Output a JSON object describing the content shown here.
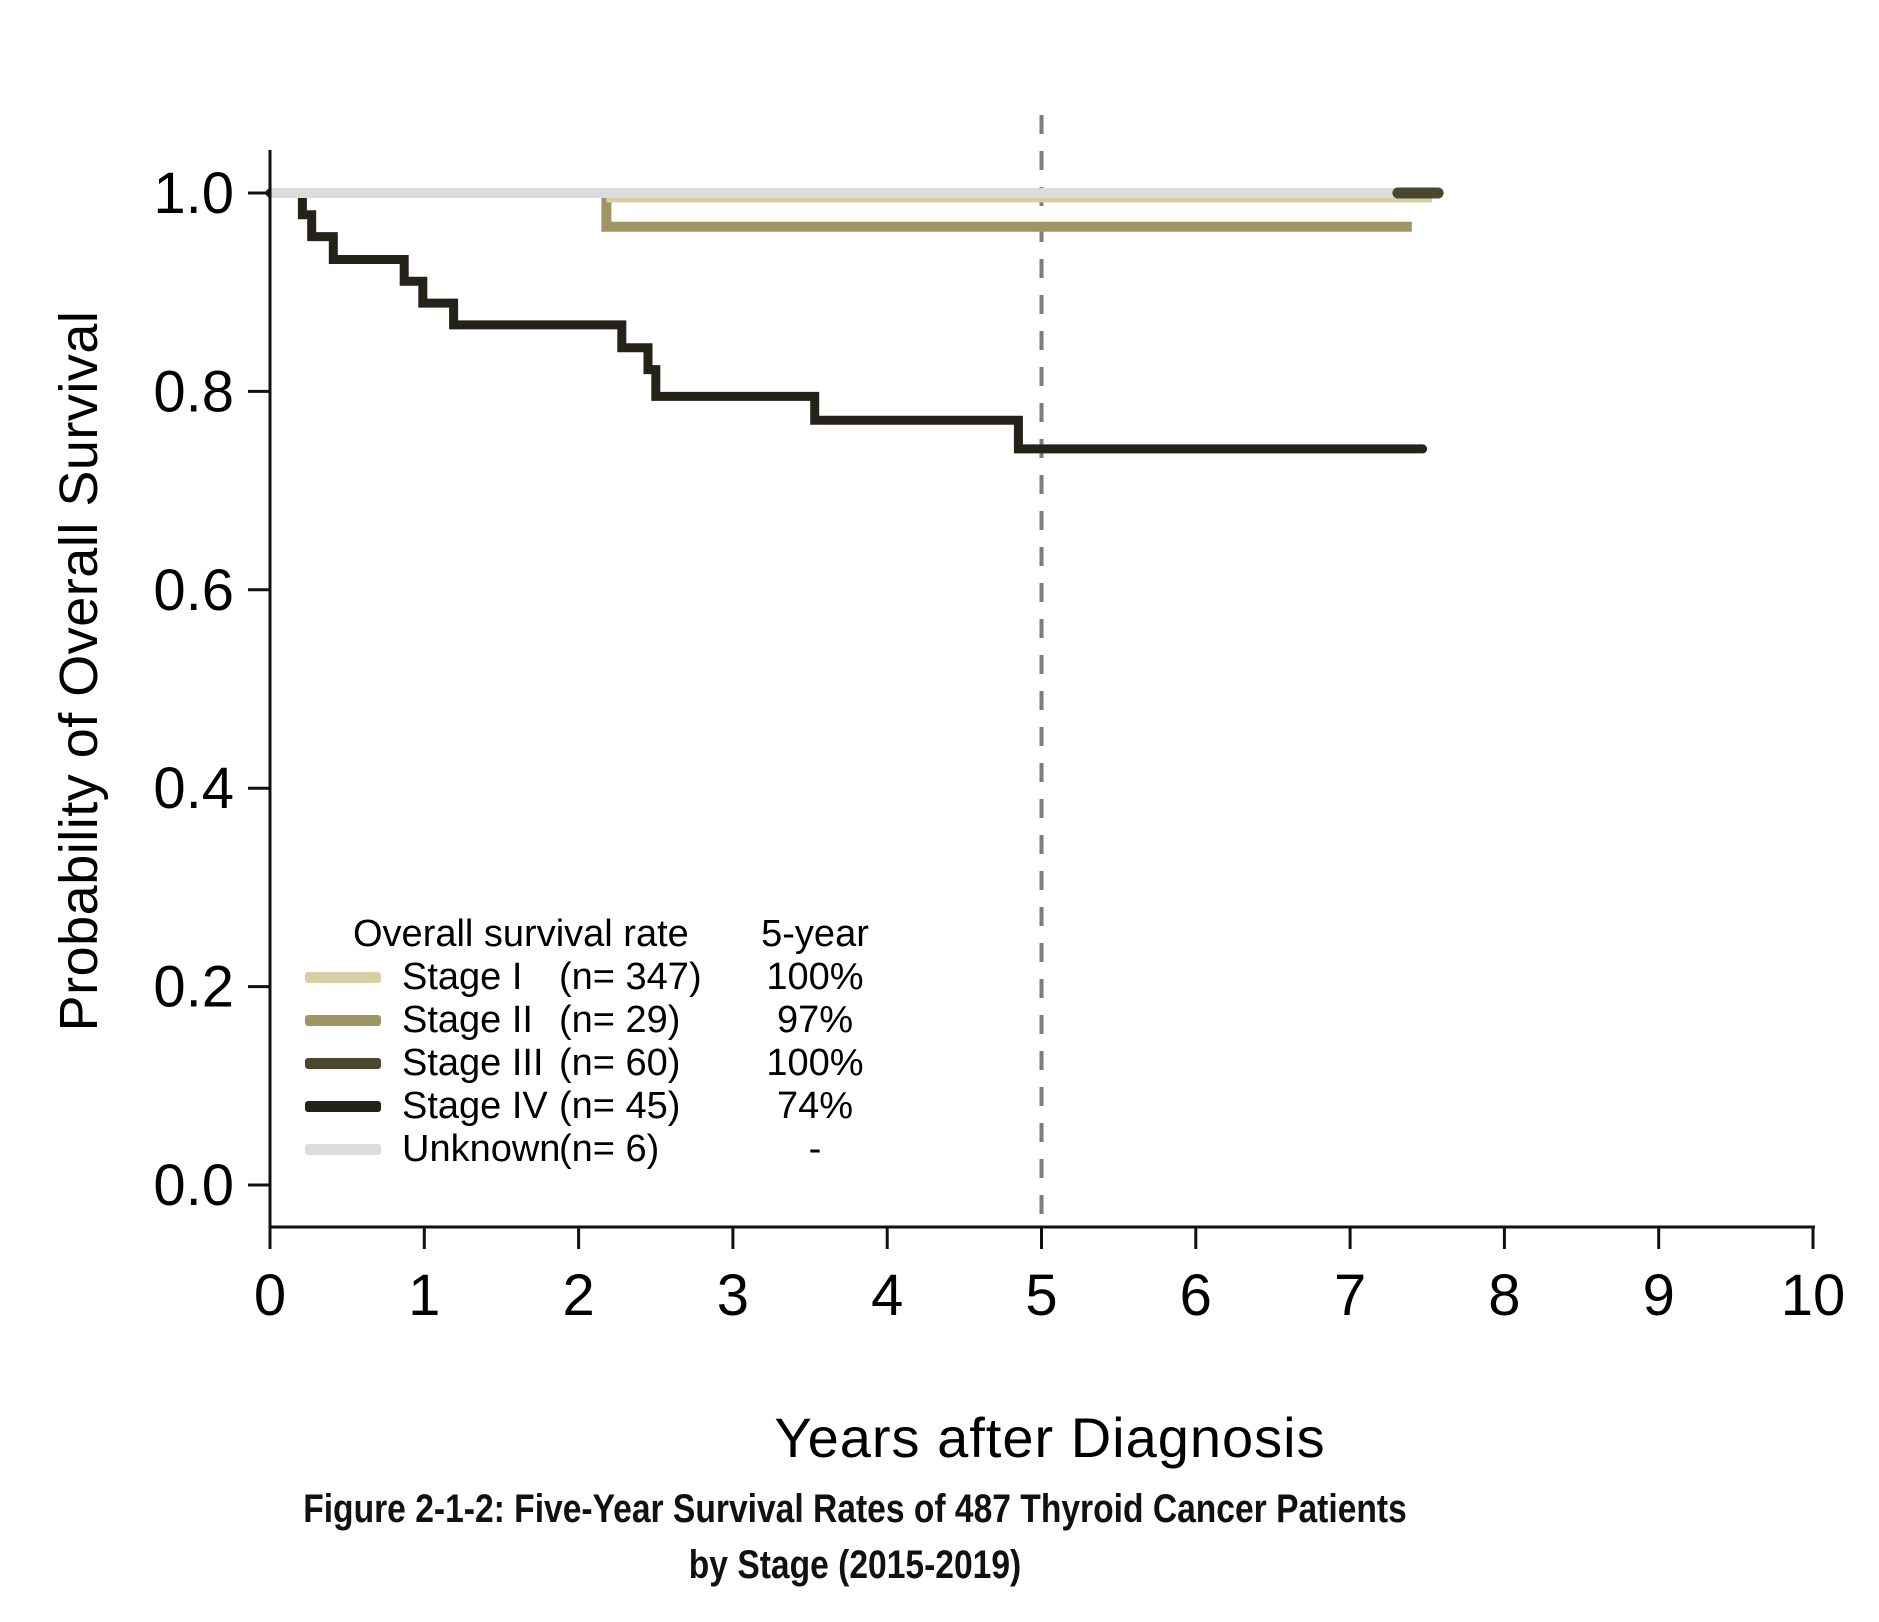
{
  "figure": {
    "y_axis_title": "Probability of Overall Survival",
    "x_axis_title": "Years after Diagnosis",
    "caption_line1": "Figure 2-1-2: Five-Year Survival Rates of 487 Thyroid Cancer Patients",
    "caption_line2": "by Stage (2015-2019)"
  },
  "legend": {
    "header_label": "Overall survival rate",
    "header_value": "5-year",
    "rows": [
      {
        "name": "Stage I",
        "n": "(n= 347)",
        "value": "100%",
        "color": "#d6d0a4"
      },
      {
        "name": "Stage II",
        "n": "(n= 29)",
        "value": "97%",
        "color": "#9f9562"
      },
      {
        "name": "Stage III",
        "n": "(n= 60)",
        "value": "100%",
        "color": "#4b472c"
      },
      {
        "name": "Stage IV",
        "n": "(n= 45)",
        "value": "74%",
        "color": "#25221a"
      },
      {
        "name": "Unknown",
        "n": "(n= 6)",
        "value": "-",
        "color": "#dcdcdc"
      }
    ]
  },
  "chart_data": {
    "type": "line",
    "subtype": "kaplan-meier-step-curves",
    "title": "Five-Year Survival Rates of 487 Thyroid Cancer Patients by Stage (2015-2019)",
    "xlabel": "Years after Diagnosis",
    "ylabel": "Probability of Overall Survival",
    "xlim": [
      0,
      10
    ],
    "ylim": [
      0.0,
      1.0
    ],
    "x_ticks": [
      "0",
      "1",
      "2",
      "3",
      "4",
      "5",
      "6",
      "7",
      "8",
      "9",
      "10"
    ],
    "x_tick_values": [
      0,
      1,
      2,
      3,
      4,
      5,
      6,
      7,
      8,
      9,
      10
    ],
    "y_ticks": [
      "0.0",
      "0.2",
      "0.4",
      "0.6",
      "0.8",
      "1.0"
    ],
    "y_tick_values": [
      0.0,
      0.2,
      0.4,
      0.6,
      0.8,
      1.0
    ],
    "grid": false,
    "reference_line_x": 5,
    "legend_position": "lower-left inside plot",
    "series": [
      {
        "name": "Stage I",
        "n": 347,
        "five_year_rate": "100%",
        "color": "#d6d0a4",
        "points": [
          [
            0,
            1.0
          ],
          [
            7.53,
            1.0
          ]
        ]
      },
      {
        "name": "Stage II",
        "n": 29,
        "five_year_rate": "97%",
        "color": "#9f9562",
        "points": [
          [
            0,
            1.0
          ],
          [
            2.18,
            1.0
          ],
          [
            2.18,
            0.966
          ],
          [
            7.4,
            0.966
          ]
        ]
      },
      {
        "name": "Stage III",
        "n": 60,
        "five_year_rate": "100%",
        "color": "#4b472c",
        "points": [
          [
            0,
            1.0
          ],
          [
            7.57,
            1.0
          ]
        ]
      },
      {
        "name": "Stage IV",
        "n": 45,
        "five_year_rate": "74%",
        "color": "#25221a",
        "points": [
          [
            0,
            1.0
          ],
          [
            0.21,
            1.0
          ],
          [
            0.21,
            0.978
          ],
          [
            0.27,
            0.978
          ],
          [
            0.27,
            0.956
          ],
          [
            0.41,
            0.956
          ],
          [
            0.41,
            0.933
          ],
          [
            0.87,
            0.933
          ],
          [
            0.87,
            0.911
          ],
          [
            0.99,
            0.911
          ],
          [
            0.99,
            0.889
          ],
          [
            1.19,
            0.889
          ],
          [
            1.19,
            0.867
          ],
          [
            2.28,
            0.867
          ],
          [
            2.28,
            0.844
          ],
          [
            2.45,
            0.844
          ],
          [
            2.45,
            0.822
          ],
          [
            2.5,
            0.822
          ],
          [
            2.5,
            0.795
          ],
          [
            3.53,
            0.795
          ],
          [
            3.53,
            0.771
          ],
          [
            4.85,
            0.771
          ],
          [
            4.85,
            0.742
          ],
          [
            7.47,
            0.742
          ]
        ]
      },
      {
        "name": "Unknown",
        "n": 6,
        "five_year_rate": "-",
        "color": "#dcdcdc",
        "points": [
          [
            0,
            1.0
          ],
          [
            7.32,
            1.0
          ]
        ]
      }
    ]
  }
}
